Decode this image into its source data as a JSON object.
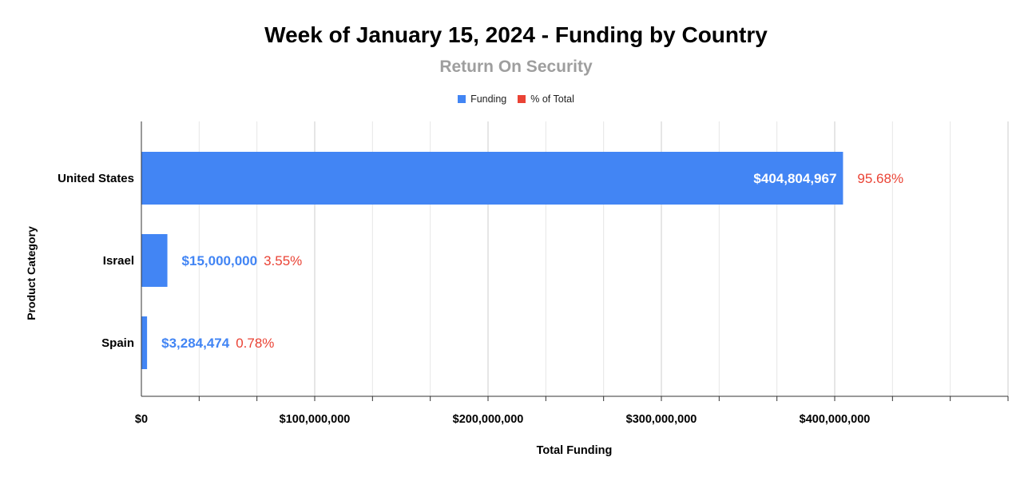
{
  "colors": {
    "funding": "#4285f4",
    "percent": "#ea4335",
    "grid": "#d9d9d9",
    "axis": "#333333",
    "subtitle": "#9e9e9e"
  },
  "chart_data": {
    "type": "bar",
    "orientation": "horizontal",
    "title": "Week of January 15, 2024 - Funding by Country",
    "subtitle": "Return On Security",
    "xlabel": "Total Funding",
    "ylabel": "Product Category",
    "categories": [
      "United States",
      "Israel",
      "Spain"
    ],
    "series": [
      {
        "name": "Funding",
        "values": [
          404804967,
          15000000,
          3284474
        ],
        "labels": [
          "$404,804,967",
          "$15,000,000",
          "$3,284,474"
        ]
      },
      {
        "name": "% of Total",
        "values": [
          95.68,
          3.55,
          0.78
        ],
        "labels": [
          "95.68%",
          "3.55%",
          "0.78%"
        ]
      }
    ],
    "xlim": [
      0,
      500000000
    ],
    "x_ticks": [
      0,
      100000000,
      200000000,
      300000000,
      400000000
    ],
    "x_tick_labels": [
      "$0",
      "$100,000,000",
      "$200,000,000",
      "$300,000,000",
      "$400,000,000"
    ],
    "minor_gridlines": true,
    "legend_position": "top"
  }
}
